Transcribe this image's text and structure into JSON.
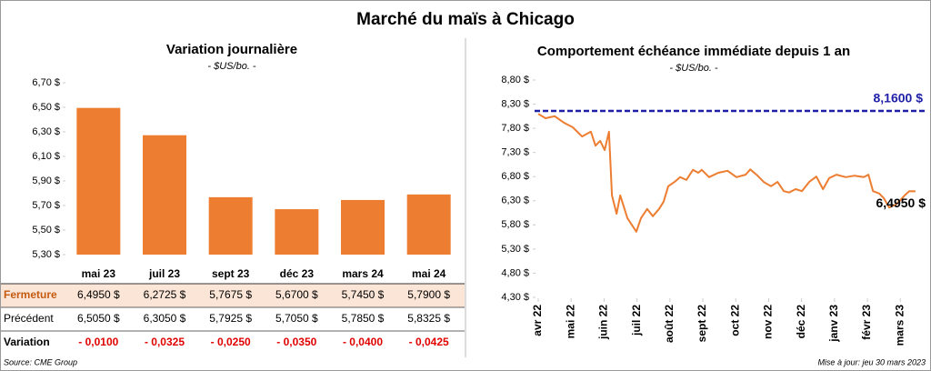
{
  "title": "Marché du maïs à Chicago",
  "chart_data": [
    {
      "type": "bar",
      "title": "Variation journalière",
      "subtitle": "- $US/bo. -",
      "categories": [
        "mai 23",
        "juil 23",
        "sept 23",
        "déc 23",
        "mars 24",
        "mai 24"
      ],
      "values": [
        6.495,
        6.2725,
        5.7675,
        5.67,
        5.745,
        5.79
      ],
      "color": "#ed7d31",
      "ylim": [
        5.3,
        6.7
      ],
      "yticks": [
        {
          "value": 5.3,
          "label": "5,30 $"
        },
        {
          "value": 5.5,
          "label": "5,50 $"
        },
        {
          "value": 5.7,
          "label": "5,70 $"
        },
        {
          "value": 5.9,
          "label": "5,90 $"
        },
        {
          "value": 6.1,
          "label": "6,10 $"
        },
        {
          "value": 6.3,
          "label": "6,30 $"
        },
        {
          "value": 6.5,
          "label": "6,50 $"
        },
        {
          "value": 6.7,
          "label": "6,70 $"
        }
      ],
      "grid": false
    },
    {
      "type": "line",
      "title": "Comportement échéance immédiate depuis 1 an",
      "subtitle": "- $US/bo. -",
      "x": [
        0,
        0.22,
        0.5,
        0.77,
        1.05,
        1.33,
        1.6,
        1.74,
        1.88,
        2.02,
        2.15,
        2.24,
        2.38,
        2.49,
        2.71,
        2.98,
        3.12,
        3.31,
        3.48,
        3.67,
        3.81,
        3.95,
        4.14,
        4.31,
        4.5,
        4.7,
        4.86,
        4.97,
        5.19,
        5.47,
        5.75,
        6.02,
        6.3,
        6.44,
        6.63,
        6.85,
        7.07,
        7.27,
        7.46,
        7.62,
        7.82,
        8.01,
        8.23,
        8.45,
        8.65,
        8.84,
        9.06,
        9.34,
        9.61,
        9.89,
        10.03,
        10.17,
        10.36,
        10.5,
        10.66,
        10.86,
        11.0,
        11.13,
        11.27,
        11.46
      ],
      "values": [
        8.1,
        8.01,
        8.05,
        7.92,
        7.82,
        7.63,
        7.73,
        7.44,
        7.54,
        7.35,
        7.73,
        6.41,
        6.03,
        6.41,
        5.94,
        5.66,
        5.94,
        6.13,
        5.98,
        6.13,
        6.28,
        6.6,
        6.69,
        6.79,
        6.73,
        6.94,
        6.88,
        6.94,
        6.79,
        6.88,
        6.92,
        6.79,
        6.84,
        6.95,
        6.84,
        6.69,
        6.6,
        6.69,
        6.5,
        6.47,
        6.54,
        6.5,
        6.69,
        6.8,
        6.54,
        6.77,
        6.84,
        6.79,
        6.82,
        6.79,
        6.84,
        6.5,
        6.45,
        6.35,
        6.16,
        6.22,
        6.31,
        6.41,
        6.5,
        6.495
      ],
      "color": "#ed7d31",
      "xlim": [
        0,
        11.6
      ],
      "xticks": [
        {
          "value": 0,
          "label": "avr 22"
        },
        {
          "value": 1,
          "label": "mai 22"
        },
        {
          "value": 2,
          "label": "juin 22"
        },
        {
          "value": 3,
          "label": "juil 22"
        },
        {
          "value": 4,
          "label": "août 22"
        },
        {
          "value": 5,
          "label": "sept 22"
        },
        {
          "value": 6,
          "label": "oct 22"
        },
        {
          "value": 7,
          "label": "nov 22"
        },
        {
          "value": 8,
          "label": "déc 22"
        },
        {
          "value": 9,
          "label": "janv 23"
        },
        {
          "value": 10,
          "label": "févr 23"
        },
        {
          "value": 11,
          "label": "mars 23"
        }
      ],
      "ylim": [
        4.3,
        8.8
      ],
      "yticks": [
        {
          "value": 4.3,
          "label": "4,30 $"
        },
        {
          "value": 4.8,
          "label": "4,80 $"
        },
        {
          "value": 5.3,
          "label": "5,30 $"
        },
        {
          "value": 5.8,
          "label": "5,80 $"
        },
        {
          "value": 6.3,
          "label": "6,30 $"
        },
        {
          "value": 6.8,
          "label": "6,80 $"
        },
        {
          "value": 7.3,
          "label": "7,30 $"
        },
        {
          "value": 7.8,
          "label": "7,80 $"
        },
        {
          "value": 8.3,
          "label": "8,30 $"
        },
        {
          "value": 8.8,
          "label": "8,80 $"
        }
      ],
      "reference_line": {
        "value": 8.16,
        "label": "8,1600 $",
        "color": "#1f1fa8"
      },
      "annotation": {
        "value": 6.495,
        "label": "6,4950 $"
      }
    }
  ],
  "table": {
    "rows": [
      [
        "Fermeture",
        "6,4950 $",
        "6,2725 $",
        "5,7675 $",
        "5,6700 $",
        "5,7450 $",
        "5,7900 $"
      ],
      [
        "Précédent",
        "6,5050 $",
        "6,3050 $",
        "5,7925 $",
        "5,7050 $",
        "5,7850 $",
        "5,8325 $"
      ],
      [
        "Variation",
        "- 0,0100",
        "- 0,0325",
        "- 0,0250",
        "- 0,0350",
        "- 0,0400",
        "- 0,0425"
      ]
    ]
  },
  "source": "Source: CME Group",
  "updated": "Mise à jour: jeu 30 mars 2023"
}
